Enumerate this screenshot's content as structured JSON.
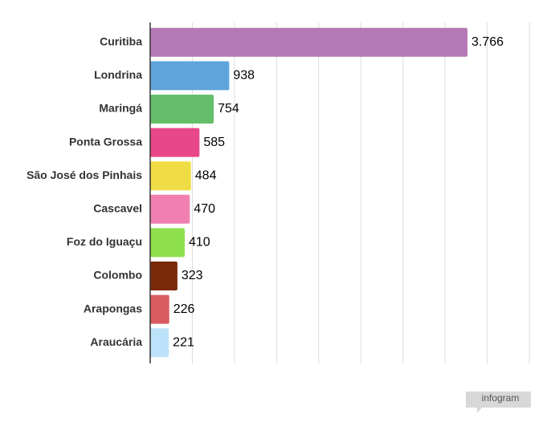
{
  "chart_data": {
    "type": "bar",
    "orientation": "horizontal",
    "categories": [
      "Curitiba",
      "Londrina",
      "Maringá",
      "Ponta Grossa",
      "São José dos Pinhais",
      "Cascavel",
      "Foz do Iguaçu",
      "Colombo",
      "Arapongas",
      "Araucária"
    ],
    "values": [
      3766,
      938,
      754,
      585,
      484,
      470,
      410,
      323,
      226,
      221
    ],
    "value_labels": [
      "3.766",
      "938",
      "754",
      "585",
      "484",
      "470",
      "410",
      "323",
      "226",
      "221"
    ],
    "colors": [
      "#b57ab5",
      "#5fa5db",
      "#65bf6a",
      "#e8478a",
      "#f0dc45",
      "#f07fb0",
      "#8ee04d",
      "#7a2808",
      "#d95c60",
      "#bde3fb"
    ],
    "xlim": [
      0,
      4500
    ],
    "xticks": [
      0,
      500,
      1000,
      1500,
      2000,
      2500,
      3000,
      3500,
      4000,
      4500
    ],
    "grid": true
  },
  "branding": "infogram"
}
